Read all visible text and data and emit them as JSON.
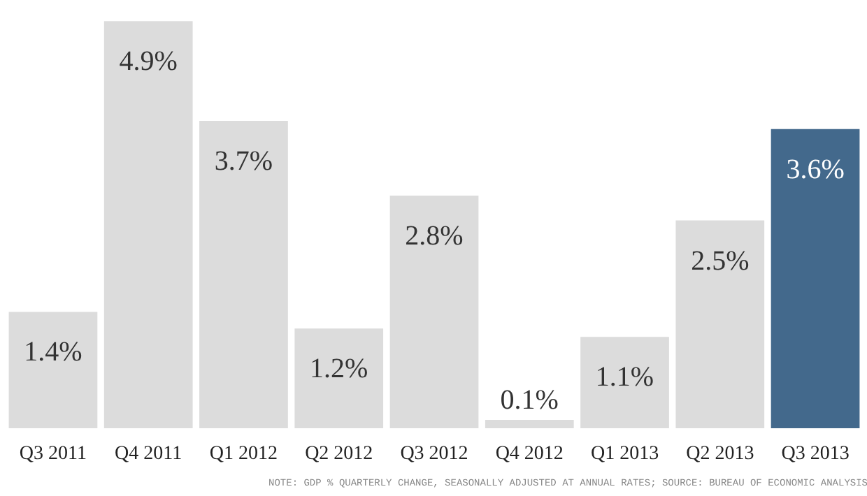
{
  "chart_data": {
    "type": "bar",
    "categories": [
      "Q3 2011",
      "Q4 2011",
      "Q1 2012",
      "Q2 2012",
      "Q3 2012",
      "Q4 2012",
      "Q1 2013",
      "Q2 2013",
      "Q3 2013"
    ],
    "values": [
      1.4,
      4.9,
      3.7,
      1.2,
      2.8,
      0.1,
      1.1,
      2.5,
      3.6
    ],
    "colors": [
      "#dcdcdc",
      "#dcdcdc",
      "#dcdcdc",
      "#dcdcdc",
      "#dcdcdc",
      "#dcdcdc",
      "#dcdcdc",
      "#dcdcdc",
      "#43698c"
    ],
    "value_labels": [
      "1.4%",
      "4.9%",
      "3.7%",
      "1.2%",
      "2.8%",
      "0.1%",
      "1.1%",
      "2.5%",
      "3.6%"
    ],
    "annotations": [
      "NOTE: GDP % QUARTERLY CHANGE, SEASONALLY ADJUSTED AT ANNUAL RATES; SOURCE: BUREAU OF ECONOMIC ANALYSIS"
    ],
    "grid": false
  }
}
